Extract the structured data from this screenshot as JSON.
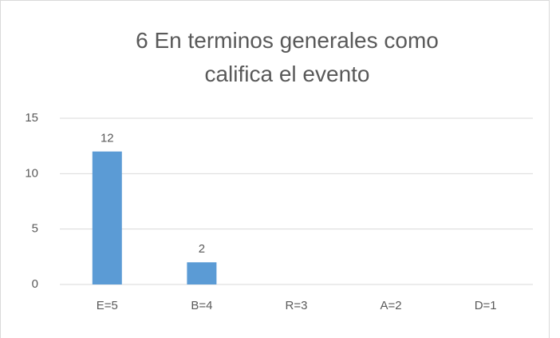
{
  "chart_data": {
    "type": "bar",
    "title": "6 En terminos generales como califica el evento",
    "categories": [
      "E=5",
      "B=4",
      "R=3",
      "A=2",
      "D=1"
    ],
    "values": [
      12,
      2,
      0,
      0,
      0
    ],
    "value_labels": [
      "12",
      "2",
      null,
      null,
      null
    ],
    "color": "#5b9bd5",
    "ylim": [
      0,
      15
    ],
    "yticks": [
      0,
      5,
      10,
      15
    ],
    "grid": true
  }
}
